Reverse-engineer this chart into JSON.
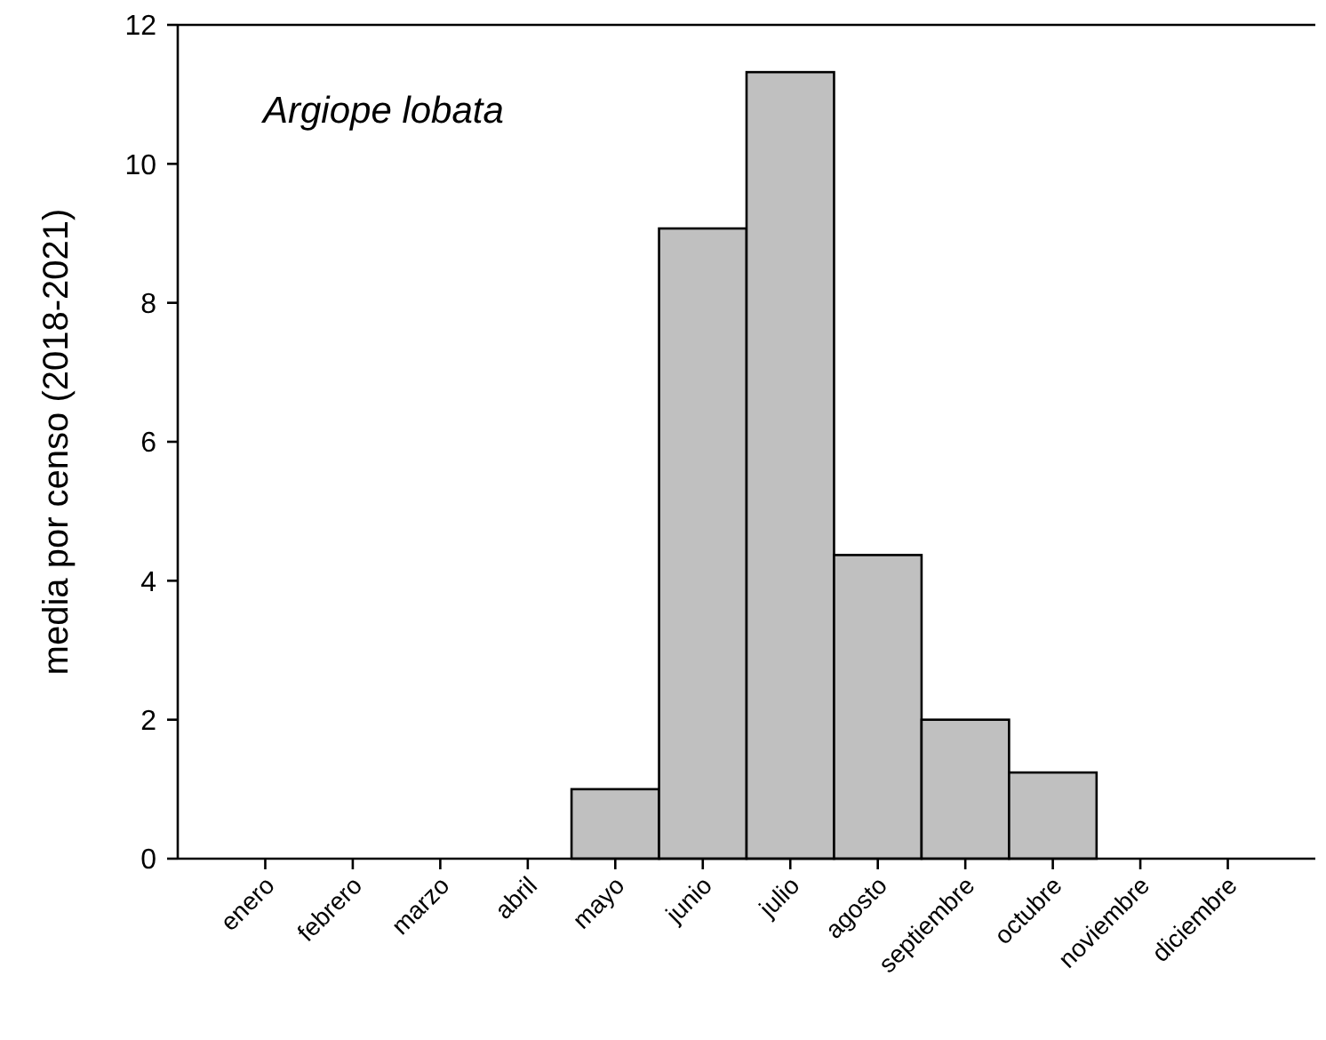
{
  "chart_data": {
    "type": "bar",
    "title": "Argiope lobata",
    "ylabel": "media por censo (2018-2021)",
    "categories": [
      "enero",
      "febrero",
      "marzo",
      "abril",
      "mayo",
      "junio",
      "julio",
      "agosto",
      "septiembre",
      "octubre",
      "noviembre",
      "diciembre"
    ],
    "values": [
      0,
      0,
      0,
      0,
      1,
      9.07,
      11.32,
      4.37,
      2,
      1.24,
      0,
      0
    ],
    "color": "#c0c0c0",
    "ylim": [
      0,
      12
    ],
    "yticks": [
      0,
      2,
      4,
      6,
      8,
      10,
      12
    ],
    "grid": false
  }
}
